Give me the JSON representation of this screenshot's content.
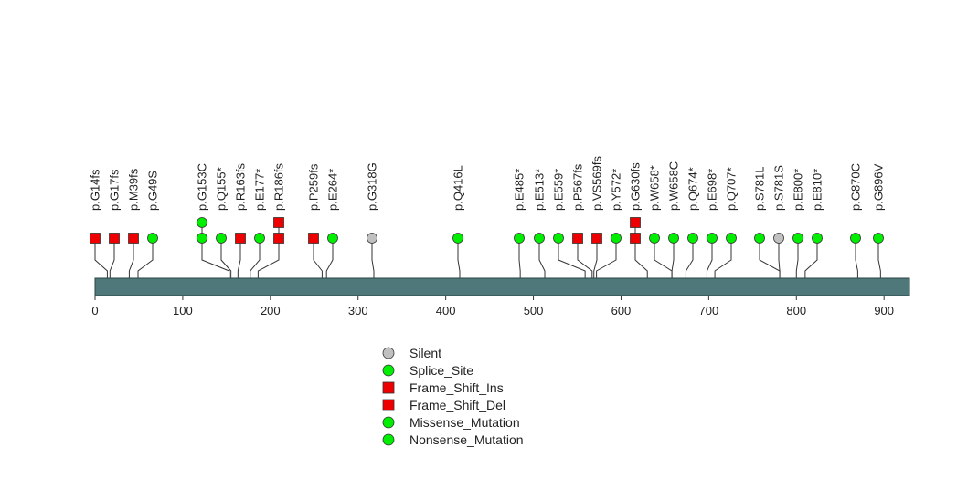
{
  "chart_data": {
    "type": "lollipop",
    "protein_length": 929,
    "xlim": [
      0,
      929
    ],
    "x_ticks": [
      0,
      100,
      200,
      300,
      400,
      500,
      600,
      700,
      800,
      900
    ],
    "colors": {
      "green": "#00ee00",
      "red": "#ee0000",
      "gray": "#c0c0c0",
      "bar": "#4e7879",
      "line": "#333333"
    },
    "mutations": [
      {
        "label": "p.G14fs",
        "pos": 14,
        "shape": "square",
        "color": "red",
        "stack": 1
      },
      {
        "label": "p.G17fs",
        "pos": 17,
        "shape": "square",
        "color": "red",
        "stack": 1
      },
      {
        "label": "p.M39fs",
        "pos": 39,
        "shape": "square",
        "color": "red",
        "stack": 1
      },
      {
        "label": "p.G49S",
        "pos": 49,
        "shape": "circle",
        "color": "green",
        "stack": 1
      },
      {
        "label": "p.G153C",
        "pos": 153,
        "shape": "circle",
        "color": "green",
        "stack": 2
      },
      {
        "label": "p.Q155*",
        "pos": 155,
        "shape": "circle",
        "color": "green",
        "stack": 1
      },
      {
        "label": "p.R163fs",
        "pos": 163,
        "shape": "square",
        "color": "red",
        "stack": 1
      },
      {
        "label": "p.E177*",
        "pos": 177,
        "shape": "circle",
        "color": "green",
        "stack": 1
      },
      {
        "label": "p.R186fs",
        "pos": 186,
        "shape": "square",
        "color": "red",
        "stack": 2
      },
      {
        "label": "p.P259fs",
        "pos": 259,
        "shape": "square",
        "color": "red",
        "stack": 1
      },
      {
        "label": "p.E264*",
        "pos": 264,
        "shape": "circle",
        "color": "green",
        "stack": 1
      },
      {
        "label": "p.G318G",
        "pos": 318,
        "shape": "circle",
        "color": "gray",
        "stack": 1
      },
      {
        "label": "p.Q416L",
        "pos": 416,
        "shape": "circle",
        "color": "green",
        "stack": 1
      },
      {
        "label": "p.E485*",
        "pos": 485,
        "shape": "circle",
        "color": "green",
        "stack": 1
      },
      {
        "label": "p.E513*",
        "pos": 513,
        "shape": "circle",
        "color": "green",
        "stack": 1
      },
      {
        "label": "p.E559*",
        "pos": 559,
        "shape": "circle",
        "color": "green",
        "stack": 1
      },
      {
        "label": "p.P567fs",
        "pos": 567,
        "shape": "square",
        "color": "red",
        "stack": 1
      },
      {
        "label": "p.VS569fs",
        "pos": 569,
        "shape": "square",
        "color": "red",
        "stack": 1
      },
      {
        "label": "p.Y572*",
        "pos": 572,
        "shape": "circle",
        "color": "green",
        "stack": 1
      },
      {
        "label": "p.G630fs",
        "pos": 630,
        "shape": "square",
        "color": "red",
        "stack": 2
      },
      {
        "label": "p.W658*",
        "pos": 658,
        "shape": "circle",
        "color": "green",
        "stack": 1
      },
      {
        "label": "p.W658C",
        "pos": 658,
        "shape": "circle",
        "color": "green",
        "stack": 1
      },
      {
        "label": "p.Q674*",
        "pos": 674,
        "shape": "circle",
        "color": "green",
        "stack": 1
      },
      {
        "label": "p.E698*",
        "pos": 698,
        "shape": "circle",
        "color": "green",
        "stack": 1
      },
      {
        "label": "p.Q707*",
        "pos": 707,
        "shape": "circle",
        "color": "green",
        "stack": 1
      },
      {
        "label": "p.S781L",
        "pos": 781,
        "shape": "circle",
        "color": "green",
        "stack": 1
      },
      {
        "label": "p.S781S",
        "pos": 781,
        "shape": "circle",
        "color": "gray",
        "stack": 1
      },
      {
        "label": "p.E800*",
        "pos": 800,
        "shape": "circle",
        "color": "green",
        "stack": 1
      },
      {
        "label": "p.E810*",
        "pos": 810,
        "shape": "circle",
        "color": "green",
        "stack": 1
      },
      {
        "label": "p.G870C",
        "pos": 870,
        "shape": "circle",
        "color": "green",
        "stack": 1
      },
      {
        "label": "p.G896V",
        "pos": 896,
        "shape": "circle",
        "color": "green",
        "stack": 1
      }
    ],
    "legend": [
      {
        "label": "Silent",
        "shape": "circle",
        "color": "gray"
      },
      {
        "label": "Splice_Site",
        "shape": "circle",
        "color": "green"
      },
      {
        "label": "Frame_Shift_Ins",
        "shape": "square",
        "color": "red"
      },
      {
        "label": "Frame_Shift_Del",
        "shape": "square",
        "color": "red"
      },
      {
        "label": "Missense_Mutation",
        "shape": "circle",
        "color": "green"
      },
      {
        "label": "Nonsense_Mutation",
        "shape": "circle",
        "color": "green"
      }
    ]
  }
}
